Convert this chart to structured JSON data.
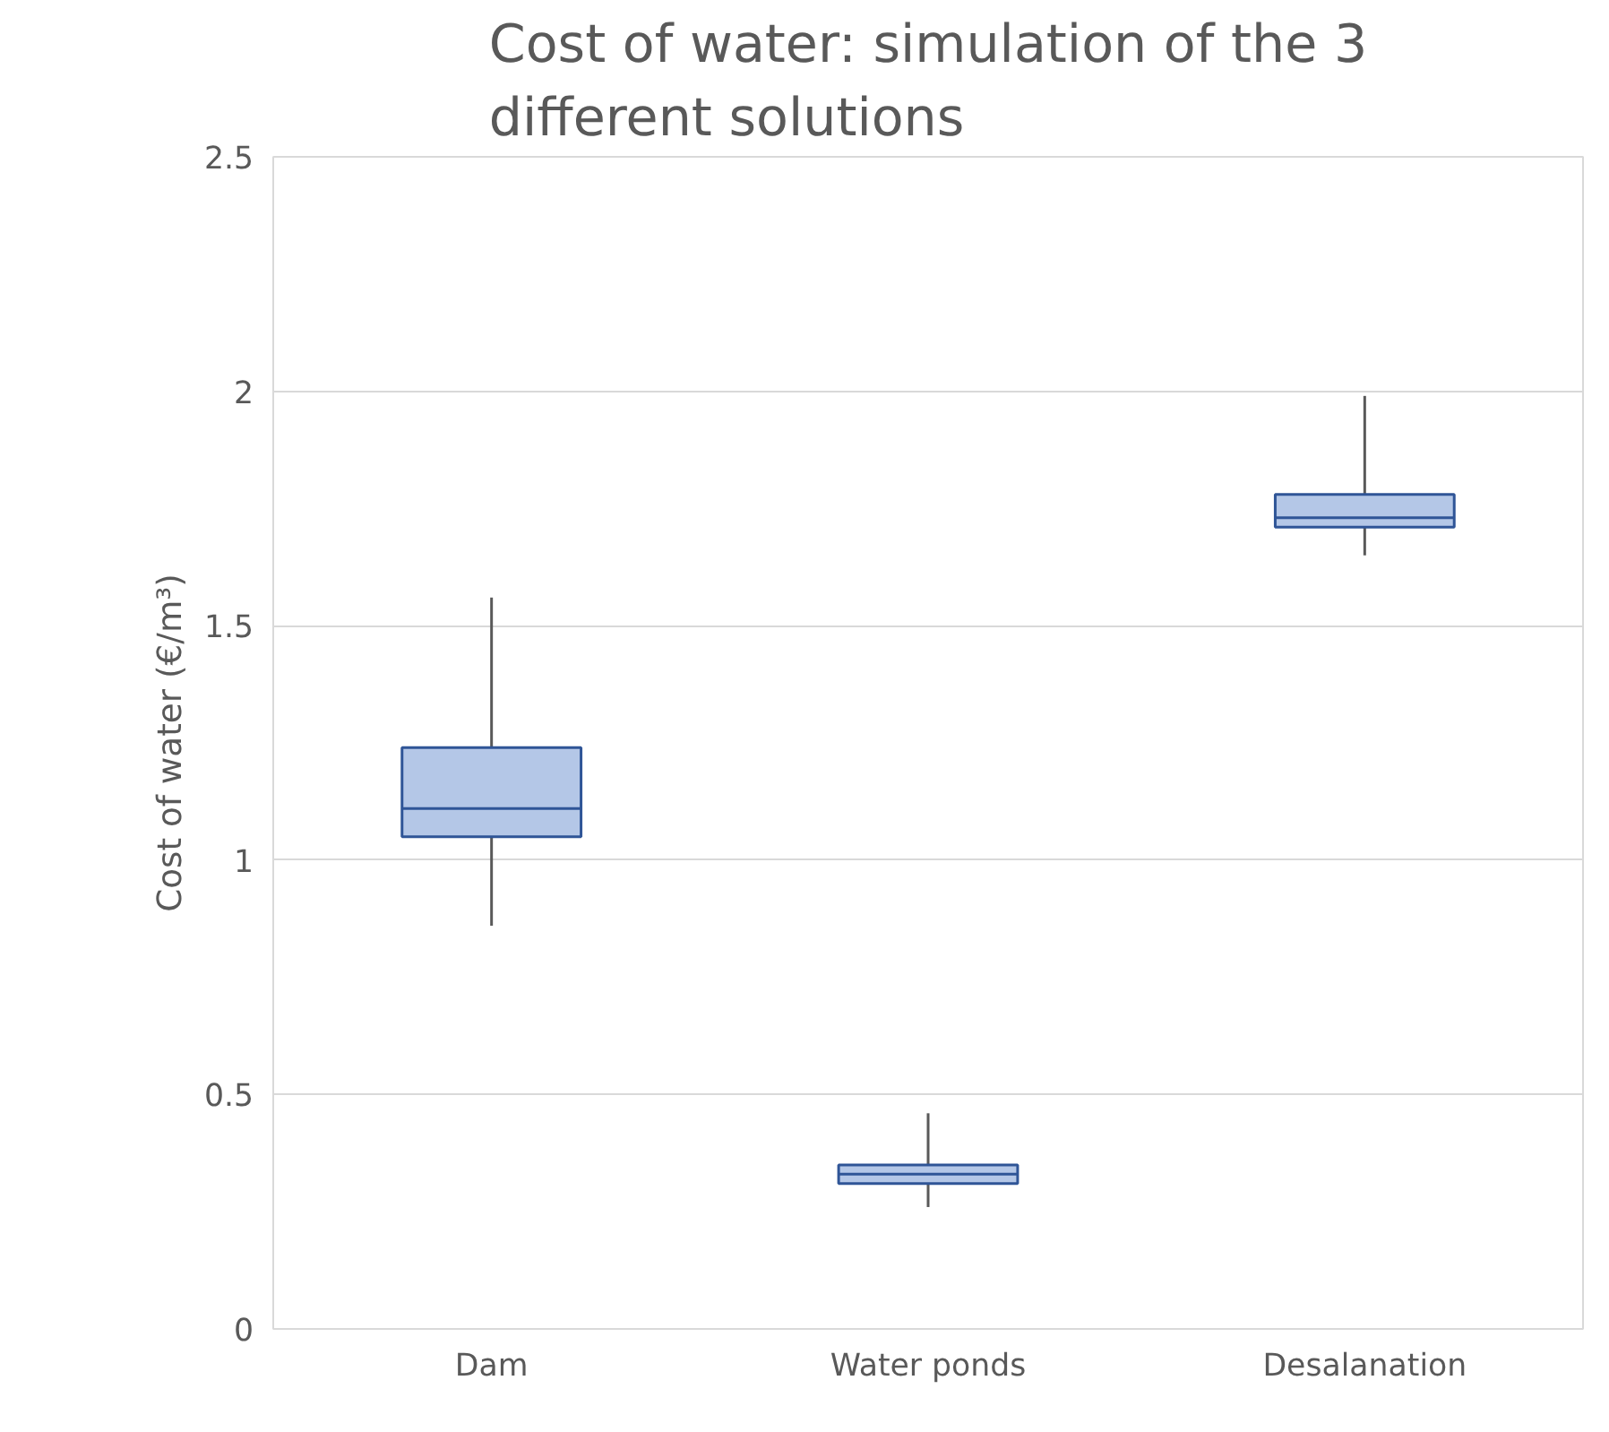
{
  "chart_data": {
    "type": "box",
    "title": "Cost of water: simulation of the 3 different solutions",
    "ylabel": "Cost of water (€/m³)",
    "categories": [
      "Dam",
      "Water ponds",
      "Desalanation"
    ],
    "series": [
      {
        "color": "#b4c7e7",
        "boxes": [
          {
            "low": 0.86,
            "q1": 1.05,
            "median": 1.11,
            "q3": 1.24,
            "high": 1.56
          },
          {
            "low": 0.26,
            "q1": 0.31,
            "median": 0.33,
            "q3": 0.35,
            "high": 0.46
          },
          {
            "low": 1.65,
            "q1": 1.71,
            "median": 1.73,
            "q3": 1.78,
            "high": 1.99
          }
        ]
      }
    ],
    "ylim": [
      0,
      2.5
    ],
    "yticks": [
      0,
      0.5,
      1,
      1.5,
      2,
      2.5
    ],
    "grid": "y"
  }
}
